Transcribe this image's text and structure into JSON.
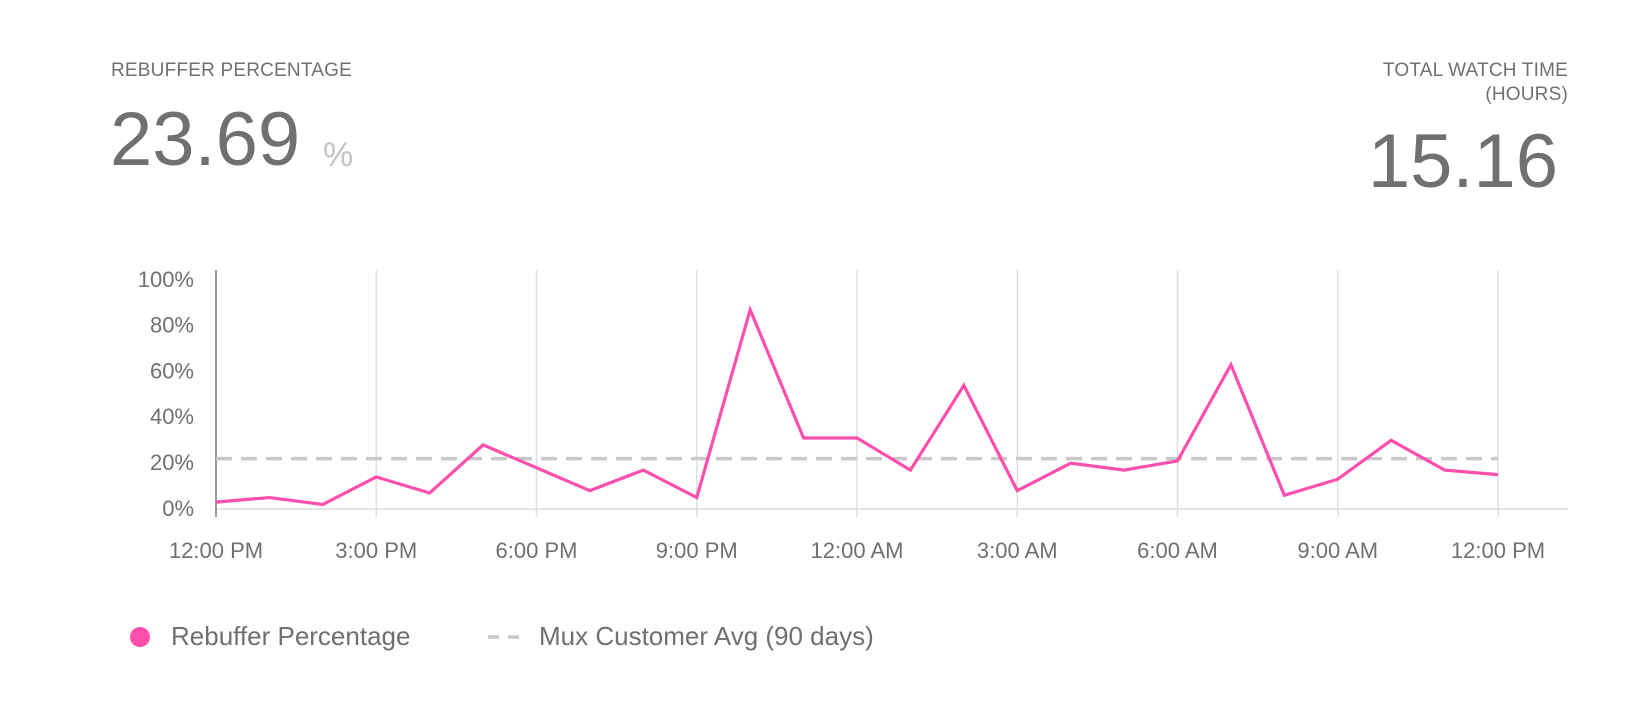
{
  "metrics": [
    {
      "label": "REBUFFER PERCENTAGE",
      "value": 23.69,
      "unit": "%"
    },
    {
      "label_lines": [
        "TOTAL WATCH TIME",
        "(HOURS)"
      ],
      "value": 15.16
    }
  ],
  "chart_data": {
    "type": "line",
    "categories": [
      "12:00 PM",
      null,
      null,
      "3:00 PM",
      null,
      null,
      "6:00 PM",
      null,
      null,
      "9:00 PM",
      null,
      null,
      "12:00 AM",
      null,
      null,
      "3:00 AM",
      null,
      null,
      "6:00 AM",
      null,
      null,
      "9:00 AM",
      null,
      null,
      "12:00 PM"
    ],
    "series": [
      {
        "name": "Rebuffer Percentage",
        "color": "#ff4fad",
        "values": [
          3,
          5,
          2,
          14,
          7,
          28,
          18,
          8,
          17,
          5,
          87,
          31,
          31,
          17,
          54,
          8,
          20,
          17,
          21,
          63,
          6,
          13,
          30,
          17,
          15
        ]
      }
    ],
    "reference": {
      "name": "Mux Customer Avg (90 days)",
      "value": 22,
      "color": "#c8c8c8"
    },
    "ylim": [
      0,
      100
    ],
    "yticks": [
      {
        "value": 0,
        "label": "0%"
      },
      {
        "value": 20,
        "label": "20%"
      },
      {
        "value": 40,
        "label": "40%"
      },
      {
        "value": 60,
        "label": "60%"
      },
      {
        "value": 80,
        "label": "80%"
      },
      {
        "value": 100,
        "label": "100%"
      }
    ],
    "grid": true
  }
}
